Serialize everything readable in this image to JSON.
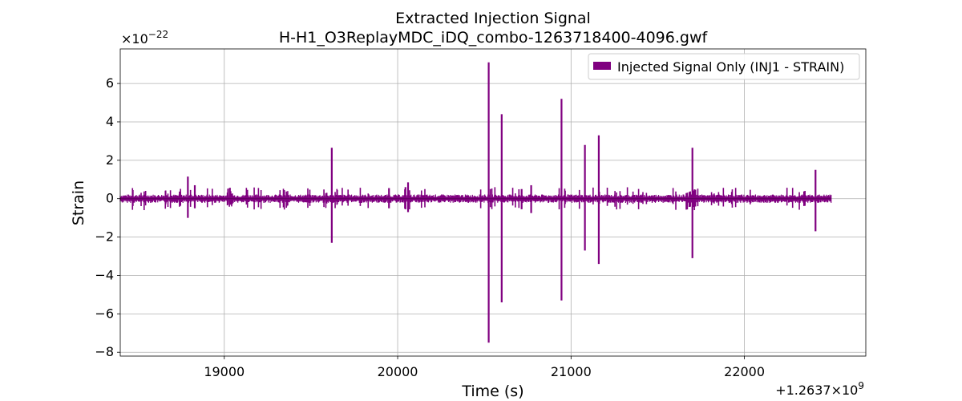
{
  "chart_data": {
    "type": "line",
    "title": "Extracted Injection Signal",
    "subtitle": "H-H1_O3ReplayMDC_iDQ_combo-1263718400-4096.gwf",
    "xlabel": "Time (s)",
    "ylabel": "Strain",
    "x_offset_label": "+1.2637×10",
    "x_offset_exponent": "9",
    "y_scale_label": "×10",
    "y_scale_exponent": "−22",
    "xlim": [
      18400,
      22700
    ],
    "ylim": [
      -8.2,
      7.8
    ],
    "x_ticks": [
      19000,
      20000,
      21000,
      22000
    ],
    "x_tick_labels": [
      "19000",
      "20000",
      "21000",
      "22000"
    ],
    "y_ticks": [
      -8,
      -6,
      -4,
      -2,
      0,
      2,
      4,
      6
    ],
    "y_tick_labels": [
      "−8",
      "−6",
      "−4",
      "−2",
      "0",
      "2",
      "4",
      "6"
    ],
    "grid": true,
    "legend_position": "top-right",
    "series": [
      {
        "name": "Injected Signal Only (INJ1 - STRAIN)",
        "color": "#800080",
        "x_range": [
          18400,
          22500
        ],
        "baseline_band": [
          -0.22,
          0.22
        ],
        "spikes": [
          {
            "x": 18790,
            "max": 1.15,
            "min": -1.0
          },
          {
            "x": 18830,
            "max": 0.7,
            "min": -0.5
          },
          {
            "x": 19620,
            "max": 2.65,
            "min": -2.3
          },
          {
            "x": 20525,
            "max": 7.1,
            "min": -7.5
          },
          {
            "x": 20600,
            "max": 4.4,
            "min": -5.4
          },
          {
            "x": 20945,
            "max": 5.2,
            "min": -5.3
          },
          {
            "x": 21080,
            "max": 2.8,
            "min": -2.7
          },
          {
            "x": 21160,
            "max": 3.3,
            "min": -3.4
          },
          {
            "x": 21700,
            "max": 2.65,
            "min": -3.1
          },
          {
            "x": 22410,
            "max": 1.5,
            "min": -1.7
          },
          {
            "x": 20060,
            "max": 0.85,
            "min": -0.7
          },
          {
            "x": 20770,
            "max": 0.7,
            "min": -0.75
          },
          {
            "x": 20045,
            "max": 0.6,
            "min": -0.55
          },
          {
            "x": 19950,
            "max": 0.55,
            "min": -0.5
          },
          {
            "x": 20715,
            "max": 0.5,
            "min": -0.55
          }
        ]
      }
    ]
  }
}
